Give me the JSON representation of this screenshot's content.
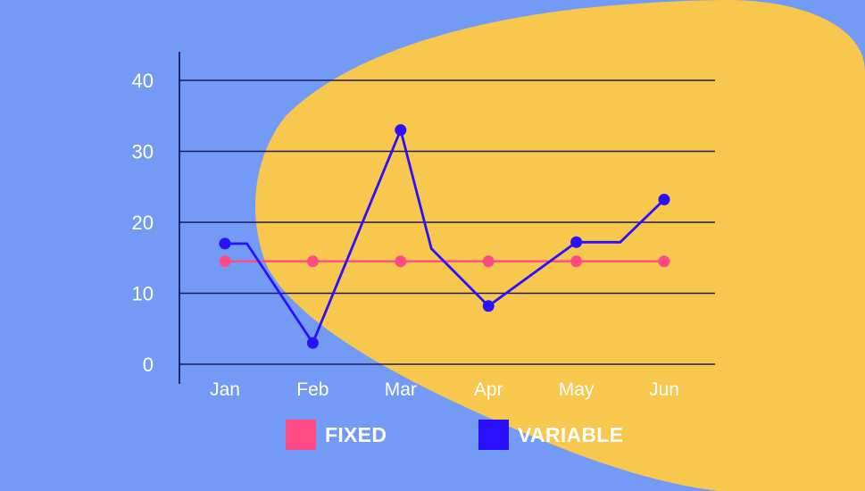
{
  "colors": {
    "background": "#739BF5",
    "blob": "#F8C74D",
    "grid": "#1E1A5C",
    "fixed": "#FF4A86",
    "variable": "#2B0FFF",
    "text": "#FFFFFF"
  },
  "legend": {
    "fixed_label": "FIXED",
    "variable_label": "VARIABLE"
  },
  "chart_data": {
    "type": "line",
    "title": "",
    "xlabel": "",
    "ylabel": "",
    "categories": [
      "Jan",
      "Feb",
      "Mar",
      "Apr",
      "May",
      "Jun"
    ],
    "ylim": [
      0,
      40
    ],
    "yticks": [
      0,
      10,
      20,
      30,
      40
    ],
    "grid": true,
    "legend_position": "bottom",
    "series": [
      {
        "name": "FIXED",
        "x": [
          0,
          1,
          2,
          3,
          4,
          5
        ],
        "values": [
          14.5,
          14.5,
          14.5,
          14.5,
          14.5,
          14.5
        ],
        "markers": [
          0,
          1,
          2,
          3,
          4,
          5
        ]
      },
      {
        "name": "VARIABLE",
        "x": [
          0,
          0.25,
          1,
          2,
          2.35,
          3,
          4,
          4.5,
          5
        ],
        "values": [
          17,
          17,
          3,
          33,
          16.3,
          8.2,
          17.2,
          17.2,
          23.2
        ],
        "markers": [
          0,
          2,
          3,
          5,
          6,
          8
        ]
      }
    ]
  }
}
